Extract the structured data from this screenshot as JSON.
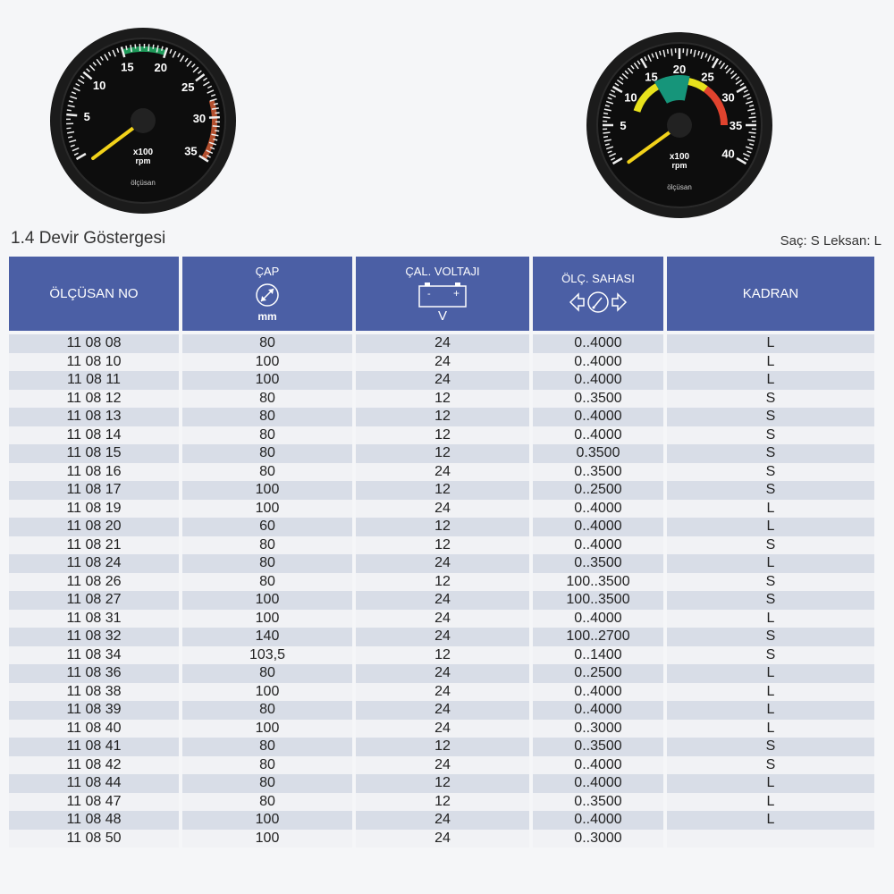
{
  "gauges": [
    {
      "brand": "ölçüsan",
      "unit_line1": "x100",
      "unit_line2": "rpm",
      "max": 35,
      "labels": [
        "5",
        "10",
        "15",
        "20",
        "25",
        "30",
        "35"
      ],
      "zones": [
        {
          "from": 15,
          "to": 20,
          "color": "#1e9a5a"
        },
        {
          "from": 28,
          "to": 35,
          "color": "#b4502f"
        }
      ],
      "needle_value": 0
    },
    {
      "brand": "ölçüsan",
      "unit_line1": "x100",
      "unit_line2": "rpm",
      "max": 40,
      "labels": [
        "5",
        "10",
        "15",
        "20",
        "25",
        "30",
        "35",
        "40"
      ],
      "zones": [
        {
          "from": 8,
          "to": 15,
          "color": "#e8e21c"
        },
        {
          "from": 15,
          "to": 22,
          "color": "#16957a"
        },
        {
          "from": 22,
          "to": 26,
          "color": "#e8e21c"
        },
        {
          "from": 26,
          "to": 35,
          "color": "#e0432e"
        }
      ],
      "needle_value": 0
    }
  ],
  "header": {
    "title": "1.4 Devir Göstergesi",
    "legend": "Saç: S  Leksan: L"
  },
  "columns": {
    "no": "ÖLÇÜSAN NO",
    "cap": "ÇAP",
    "cap_unit": "mm",
    "voltage": "ÇAL. VOLTAJI",
    "voltage_unit": "V",
    "range": "ÖLÇ. SAHASI",
    "kadran": "KADRAN"
  },
  "colors": {
    "header_bg": "#4b5fa5",
    "row_odd": "#d8dde7",
    "row_even": "#f1f2f5"
  },
  "rows": [
    [
      "11 08 08",
      "80",
      "24",
      "0..4000",
      "L"
    ],
    [
      "11 08 10",
      "100",
      "24",
      "0..4000",
      "L"
    ],
    [
      "11 08 11",
      "100",
      "24",
      "0..4000",
      "L"
    ],
    [
      "11 08 12",
      "80",
      "12",
      "0..3500",
      "S"
    ],
    [
      "11 08 13",
      "80",
      "12",
      "0..4000",
      "S"
    ],
    [
      "11 08 14",
      "80",
      "12",
      "0..4000",
      "S"
    ],
    [
      "11 08 15",
      "80",
      "12",
      "0.3500",
      "S"
    ],
    [
      "11 08 16",
      "80",
      "24",
      "0..3500",
      "S"
    ],
    [
      "11 08 17",
      "100",
      "12",
      "0..2500",
      "S"
    ],
    [
      "11 08 19",
      "100",
      "24",
      "0..4000",
      "L"
    ],
    [
      "11 08 20",
      "60",
      "12",
      "0..4000",
      "L"
    ],
    [
      "11 08 21",
      "80",
      "12",
      "0..4000",
      "S"
    ],
    [
      "11 08 24",
      "80",
      "24",
      "0..3500",
      "L"
    ],
    [
      "11 08 26",
      "80",
      "12",
      "100..3500",
      "S"
    ],
    [
      "11 08 27",
      "100",
      "24",
      "100..3500",
      "S"
    ],
    [
      "11 08 31",
      "100",
      "24",
      "0..4000",
      "L"
    ],
    [
      "11 08 32",
      "140",
      "24",
      "100..2700",
      "S"
    ],
    [
      "11 08 34",
      "103,5",
      "12",
      "0..1400",
      "S"
    ],
    [
      "11 08 36",
      "80",
      "24",
      "0..2500",
      "L"
    ],
    [
      "11 08 38",
      "100",
      "24",
      "0..4000",
      "L"
    ],
    [
      "11 08 39",
      "80",
      "24",
      "0..4000",
      "L"
    ],
    [
      "11 08 40",
      "100",
      "24",
      "0..3000",
      "L"
    ],
    [
      "11 08 41",
      "80",
      "12",
      "0..3500",
      "S"
    ],
    [
      "11 08 42",
      "80",
      "24",
      "0..4000",
      "S"
    ],
    [
      "11 08 44",
      "80",
      "12",
      "0..4000",
      "L"
    ],
    [
      "11 08 47",
      "80",
      "12",
      "0..3500",
      "L"
    ],
    [
      "11 08 48",
      "100",
      "24",
      "0..4000",
      "L"
    ],
    [
      "11 08 50",
      "100",
      "24",
      "0..3000",
      ""
    ]
  ]
}
